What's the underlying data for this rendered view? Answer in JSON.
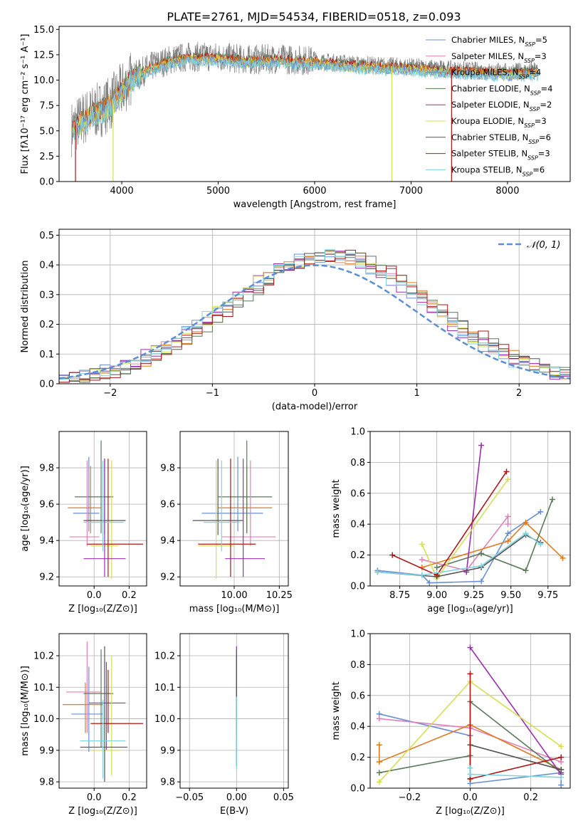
{
  "title": "PLATE=2761, MJD=54534, FIBERID=0518, z=0.093",
  "colors": {
    "chabrier_miles": "#6a8fd0",
    "salpeter_miles": "#e080b8",
    "kroupa_miles": "#7a9a6e",
    "chabrier_elodie": "#5a7a5a",
    "salpeter_elodie": "#9b2fae",
    "kroupa_elodie": "#d6e050",
    "chabrier_stelib": "#555555",
    "salpeter_stelib": "#b01515",
    "kroupa_stelib": "#7fd3e0",
    "orange": "#e07b20",
    "gaussian": "#5b8fd4"
  },
  "chart_data": [
    {
      "id": "spectrum",
      "type": "line",
      "xlabel": "wavelength [Angstrom, rest frame]",
      "ylabel": "Flux [fλ10⁻¹⁷ erg cm⁻² s⁻¹ A⁻¹]",
      "xlim": [
        3350,
        8650
      ],
      "ylim": [
        0,
        15.3
      ],
      "xticks": [
        4000,
        5000,
        6000,
        7000,
        8000
      ],
      "yticks": [
        0.0,
        2.5,
        5.0,
        7.5,
        10.0,
        12.5,
        15.0
      ],
      "continuum": [
        [
          3480,
          5.2
        ],
        [
          3600,
          6.2
        ],
        [
          3700,
          6.8
        ],
        [
          3800,
          7.2
        ],
        [
          3900,
          7.9
        ],
        [
          4000,
          9.0
        ],
        [
          4100,
          10.2
        ],
        [
          4300,
          11.3
        ],
        [
          4500,
          12.0
        ],
        [
          4700,
          12.3
        ],
        [
          5000,
          12.3
        ],
        [
          5300,
          12.0
        ],
        [
          5600,
          12.1
        ],
        [
          6000,
          11.9
        ],
        [
          6500,
          11.5
        ],
        [
          7000,
          11.3
        ],
        [
          7500,
          11.0
        ],
        [
          8000,
          10.8
        ],
        [
          8300,
          10.9
        ]
      ],
      "observed_range": [
        3480,
        8320
      ],
      "dropouts": [
        3520,
        3910,
        6800,
        7420
      ],
      "legend": [
        {
          "key": "chabrier_miles",
          "label": "Chabrier MILES, N_SSP=5"
        },
        {
          "key": "salpeter_miles",
          "label": "Salpeter MILES, N_SSP=3"
        },
        {
          "key": "kroupa_miles",
          "label": "Kroupa MILES, N_SSP=4"
        },
        {
          "key": "chabrier_elodie",
          "label": "Chabrier ELODIE, N_SSP=4"
        },
        {
          "key": "salpeter_elodie",
          "label": "Salpeter ELODIE, N_SSP=2"
        },
        {
          "key": "kroupa_elodie",
          "label": "Kroupa ELODIE, N_SSP=3"
        },
        {
          "key": "chabrier_stelib",
          "label": "Chabrier STELIB, N_SSP=6"
        },
        {
          "key": "salpeter_stelib",
          "label": "Salpeter STELIB, N_SSP=3"
        },
        {
          "key": "kroupa_stelib",
          "label": "Kroupa STELIB, N_SSP=6"
        }
      ]
    },
    {
      "id": "residuals",
      "type": "line",
      "xlabel": "(data-model)/error",
      "ylabel": "Normed distribution",
      "xlim": [
        -2.5,
        2.5
      ],
      "ylim": [
        0,
        0.52
      ],
      "xticks": [
        -2,
        -1,
        0,
        1,
        2
      ],
      "yticks": [
        0.0,
        0.1,
        0.2,
        0.3,
        0.4,
        0.5
      ],
      "legend": [
        {
          "label": "𝒩(0, 1)"
        }
      ],
      "bin_width": 0.1,
      "series_keys": [
        "chabrier_miles",
        "salpeter_miles",
        "orange",
        "chabrier_elodie",
        "salpeter_elodie",
        "kroupa_elodie",
        "chabrier_stelib",
        "salpeter_stelib",
        "kroupa_stelib"
      ]
    },
    {
      "id": "age_vs_Z",
      "type": "scatter",
      "xlabel": "Z [log₁₀(Z/Z⊙)]",
      "ylabel": "age  [log₁₀(age/yr)]",
      "xlim": [
        -0.2,
        0.3
      ],
      "ylim": [
        9.15,
        10.0
      ],
      "xticks": [
        0.0,
        0.2
      ],
      "yticks": [
        9.2,
        9.4,
        9.6,
        9.8
      ],
      "points": [
        {
          "key": "chabrier_miles",
          "x": -0.03,
          "y": 9.55,
          "ex": [
            0.09,
            0.06
          ],
          "ey": [
            0.1,
            0.31
          ]
        },
        {
          "key": "orange",
          "x": -0.02,
          "y": 9.58,
          "ex": [
            0.13,
            0.06
          ],
          "ey": [
            0.14,
            0.23
          ]
        },
        {
          "key": "chabrier_elodie",
          "x": 0.04,
          "y": 9.64,
          "ex": [
            0.15,
            0.07
          ],
          "ey": [
            0.2,
            0.31
          ]
        },
        {
          "key": "salpeter_miles",
          "x": -0.04,
          "y": 9.42,
          "ex": [
            0.1,
            0.07
          ],
          "ey": [
            0.05,
            0.42
          ]
        },
        {
          "key": "kroupa_elodie",
          "x": 0.1,
          "y": 9.37,
          "ex": [
            0.12,
            0.04
          ],
          "ey": [
            0.18,
            0.47
          ]
        },
        {
          "key": "salpeter_stelib",
          "x": 0.08,
          "y": 9.38,
          "ex": [
            0.12,
            0.2
          ],
          "ey": [
            0.18,
            0.47
          ]
        },
        {
          "key": "chabrier_stelib",
          "x": 0.06,
          "y": 9.51,
          "ex": [
            0.12,
            0.12
          ],
          "ey": [
            0.08,
            0.34
          ]
        },
        {
          "key": "kroupa_stelib",
          "x": 0.05,
          "y": 9.5,
          "ex": [
            0.11,
            0.12
          ],
          "ey": [
            0.16,
            0.34
          ]
        },
        {
          "key": "salpeter_elodie",
          "x": 0.06,
          "y": 9.3,
          "ex": [
            0.12,
            0.12
          ],
          "ey": [
            0.1,
            0.55
          ]
        }
      ]
    },
    {
      "id": "age_vs_mass",
      "type": "scatter",
      "xlabel": "mass [log₁₀(M/M⊙)]",
      "ylabel": "",
      "xlim": [
        9.7,
        10.3
      ],
      "ylim": [
        9.15,
        10.0
      ],
      "xticks": [
        10.0,
        10.25
      ],
      "yticks": [
        9.2,
        9.4,
        9.6,
        9.8
      ],
      "points": [
        {
          "key": "chabrier_miles",
          "x": 10.02,
          "y": 9.55,
          "ex": [
            0.2,
            0.14
          ],
          "ey": [
            0.1,
            0.31
          ]
        },
        {
          "key": "orange",
          "x": 10.07,
          "y": 9.58,
          "ex": [
            0.16,
            0.14
          ],
          "ey": [
            0.14,
            0.23
          ]
        },
        {
          "key": "chabrier_elodie",
          "x": 10.07,
          "y": 9.64,
          "ex": [
            0.16,
            0.14
          ],
          "ey": [
            0.2,
            0.31
          ]
        },
        {
          "key": "salpeter_miles",
          "x": 10.09,
          "y": 9.42,
          "ex": [
            0.16,
            0.14
          ],
          "ey": [
            0.05,
            0.42
          ]
        },
        {
          "key": "kroupa_elodie",
          "x": 9.9,
          "y": 9.37,
          "ex": [
            0.1,
            0.1
          ],
          "ey": [
            0.18,
            0.47
          ]
        },
        {
          "key": "salpeter_stelib",
          "x": 9.98,
          "y": 9.38,
          "ex": [
            0.18,
            0.14
          ],
          "ey": [
            0.18,
            0.47
          ]
        },
        {
          "key": "chabrier_stelib",
          "x": 9.91,
          "y": 9.51,
          "ex": [
            0.14,
            0.14
          ],
          "ey": [
            0.08,
            0.34
          ]
        },
        {
          "key": "kroupa_stelib",
          "x": 9.93,
          "y": 9.5,
          "ex": [
            0.1,
            0.1
          ],
          "ey": [
            0.16,
            0.34
          ]
        },
        {
          "key": "salpeter_elodie",
          "x": 10.05,
          "y": 9.3,
          "ex": [
            0.1,
            0.12
          ],
          "ey": [
            0.1,
            0.55
          ]
        }
      ]
    },
    {
      "id": "weight_vs_age",
      "type": "line",
      "xlabel": "age  [log₁₀(age/yr)]",
      "ylabel": "mass weight",
      "xlim": [
        8.55,
        9.9
      ],
      "ylim": [
        0,
        1
      ],
      "xticks": [
        8.75,
        9.0,
        9.25,
        9.5,
        9.75
      ],
      "yticks": [
        0.0,
        0.2,
        0.4,
        0.6,
        0.8,
        1.0
      ],
      "series": [
        {
          "key": "chabrier_miles",
          "x": [
            8.6,
            8.9,
            8.95,
            9.3,
            9.48,
            9.7
          ],
          "y": [
            0.1,
            0.07,
            0.02,
            0.03,
            0.34,
            0.48
          ]
        },
        {
          "key": "salpeter_miles",
          "x": [
            8.9,
            9.2,
            9.48,
            9.48
          ],
          "y": [
            0.17,
            0.1,
            0.45,
            0.4
          ]
        },
        {
          "key": "orange",
          "x": [
            8.9,
            9.48,
            9.6,
            9.85
          ],
          "y": [
            0.12,
            0.29,
            0.41,
            0.18
          ]
        },
        {
          "key": "chabrier_elodie",
          "x": [
            9.0,
            9.3,
            9.6,
            9.78
          ],
          "y": [
            0.12,
            0.21,
            0.1,
            0.56
          ]
        },
        {
          "key": "salpeter_elodie",
          "x": [
            9.2,
            9.3
          ],
          "y": [
            0.09,
            0.91
          ]
        },
        {
          "key": "kroupa_elodie",
          "x": [
            8.9,
            9.0,
            9.48
          ],
          "y": [
            0.27,
            0.05,
            0.69
          ]
        },
        {
          "key": "chabrier_stelib",
          "x": [
            8.6,
            9.0,
            9.3,
            9.6,
            9.7
          ],
          "y": [
            0.09,
            0.06,
            0.12,
            0.33,
            0.28
          ]
        },
        {
          "key": "salpeter_stelib",
          "x": [
            8.7,
            9.0,
            9.47
          ],
          "y": [
            0.2,
            0.07,
            0.74
          ]
        },
        {
          "key": "kroupa_stelib",
          "x": [
            8.6,
            8.9,
            9.3,
            9.6,
            9.7
          ],
          "y": [
            0.09,
            0.07,
            0.13,
            0.34,
            0.27
          ]
        }
      ]
    },
    {
      "id": "mass_vs_Z",
      "type": "scatter",
      "xlabel": "Z [log₁₀(Z/Z⊙)]",
      "ylabel": "mass [log₁₀(M/M⊙)]",
      "xlim": [
        -0.2,
        0.3
      ],
      "ylim": [
        9.78,
        10.27
      ],
      "xticks": [
        0.0,
        0.2
      ],
      "yticks": [
        9.8,
        9.9,
        10.0,
        10.1,
        10.2
      ],
      "points": [
        {
          "key": "chabrier_miles",
          "x": -0.03,
          "y": 10.015,
          "ex": [
            0.1,
            0.08
          ],
          "ey": [
            0.12,
            0.15
          ]
        },
        {
          "key": "orange",
          "x": -0.05,
          "y": 10.045,
          "ex": [
            0.13,
            0.1
          ],
          "ey": [
            0.09,
            0.07
          ]
        },
        {
          "key": "salpeter_miles",
          "x": -0.04,
          "y": 10.085,
          "ex": [
            0.12,
            0.08
          ],
          "ey": [
            0.13,
            0.16
          ]
        },
        {
          "key": "chabrier_elodie",
          "x": 0.04,
          "y": 10.08,
          "ex": [
            0.1,
            0.07
          ],
          "ey": [
            0.17,
            0.14
          ]
        },
        {
          "key": "salpeter_elodie",
          "x": 0.07,
          "y": 10.05,
          "ex": [
            0.1,
            0.11
          ],
          "ey": [
            0.15,
            0.13
          ]
        },
        {
          "key": "kroupa_elodie",
          "x": 0.1,
          "y": 9.9,
          "ex": [
            0.12,
            0.05
          ],
          "ey": [
            0.08,
            0.3
          ]
        },
        {
          "key": "salpeter_stelib",
          "x": 0.08,
          "y": 9.985,
          "ex": [
            0.1,
            0.2
          ],
          "ey": [
            0.03,
            0.17
          ]
        },
        {
          "key": "chabrier_stelib",
          "x": 0.06,
          "y": 9.91,
          "ex": [
            0.14,
            0.13
          ],
          "ey": [
            0.11,
            0.32
          ]
        },
        {
          "key": "kroupa_stelib",
          "x": 0.05,
          "y": 9.93,
          "ex": [
            0.13,
            0.13
          ],
          "ey": [
            0.12,
            0.13
          ]
        }
      ]
    },
    {
      "id": "mass_vs_EBV",
      "type": "scatter",
      "xlabel": "E(B-V)",
      "ylabel": "",
      "xlim": [
        -0.06,
        0.055
      ],
      "ylim": [
        9.78,
        10.27
      ],
      "xticks": [
        -0.05,
        0.0,
        0.05
      ],
      "yticks": [
        9.8,
        9.9,
        10.0,
        10.1,
        10.2
      ],
      "points": [
        {
          "key": "salpeter_elodie",
          "x": 0.0,
          "y": 10.1,
          "ey": [
            0.1,
            0.13
          ]
        },
        {
          "key": "salpeter_stelib",
          "x": 0.0,
          "y": 10.0,
          "ey": [
            0.05,
            0.2
          ]
        },
        {
          "key": "chabrier_stelib",
          "x": 0.0,
          "y": 9.92,
          "ey": [
            0.07,
            0.3
          ]
        },
        {
          "key": "kroupa_stelib",
          "x": 0.0,
          "y": 9.95,
          "ey": [
            0.11,
            0.12
          ]
        }
      ]
    },
    {
      "id": "weight_vs_Z",
      "type": "line",
      "xlabel": "Z [log₁₀(Z/Z⊙)]",
      "ylabel": "mass weight",
      "xlim": [
        -0.33,
        0.33
      ],
      "ylim": [
        0,
        1
      ],
      "xticks": [
        -0.2,
        0.0,
        0.2
      ],
      "yticks": [
        0.0,
        0.2,
        0.4,
        0.6,
        0.8,
        1.0
      ],
      "series": [
        {
          "key": "chabrier_miles",
          "x": [
            -0.3,
            0.0,
            0.0,
            0.3,
            0.3
          ],
          "y": [
            0.48,
            0.34,
            0.03,
            0.1,
            0.02
          ]
        },
        {
          "key": "salpeter_miles",
          "x": [
            -0.3,
            0.0,
            0.3
          ],
          "y": [
            0.45,
            0.39,
            0.17
          ]
        },
        {
          "key": "orange",
          "x": [
            -0.3,
            -0.3,
            0.0,
            0.3
          ],
          "y": [
            0.28,
            0.17,
            0.41,
            0.12
          ]
        },
        {
          "key": "chabrier_elodie",
          "x": [
            -0.3,
            0.0,
            0.0,
            0.3
          ],
          "y": [
            0.1,
            0.21,
            0.56,
            0.1
          ]
        },
        {
          "key": "salpeter_elodie",
          "x": [
            0.0,
            0.3
          ],
          "y": [
            0.91,
            0.09
          ]
        },
        {
          "key": "kroupa_elodie",
          "x": [
            -0.3,
            0.0,
            0.3
          ],
          "y": [
            0.04,
            0.69,
            0.27
          ]
        },
        {
          "key": "chabrier_stelib",
          "x": [
            0.0,
            0.0,
            0.3
          ],
          "y": [
            0.06,
            0.28,
            0.12
          ]
        },
        {
          "key": "salpeter_stelib",
          "x": [
            0.0,
            0.0,
            0.3
          ],
          "y": [
            0.74,
            0.06,
            0.2
          ]
        },
        {
          "key": "kroupa_stelib",
          "x": [
            0.0,
            0.0,
            0.3
          ],
          "y": [
            0.13,
            0.09,
            0.07
          ]
        }
      ]
    }
  ]
}
